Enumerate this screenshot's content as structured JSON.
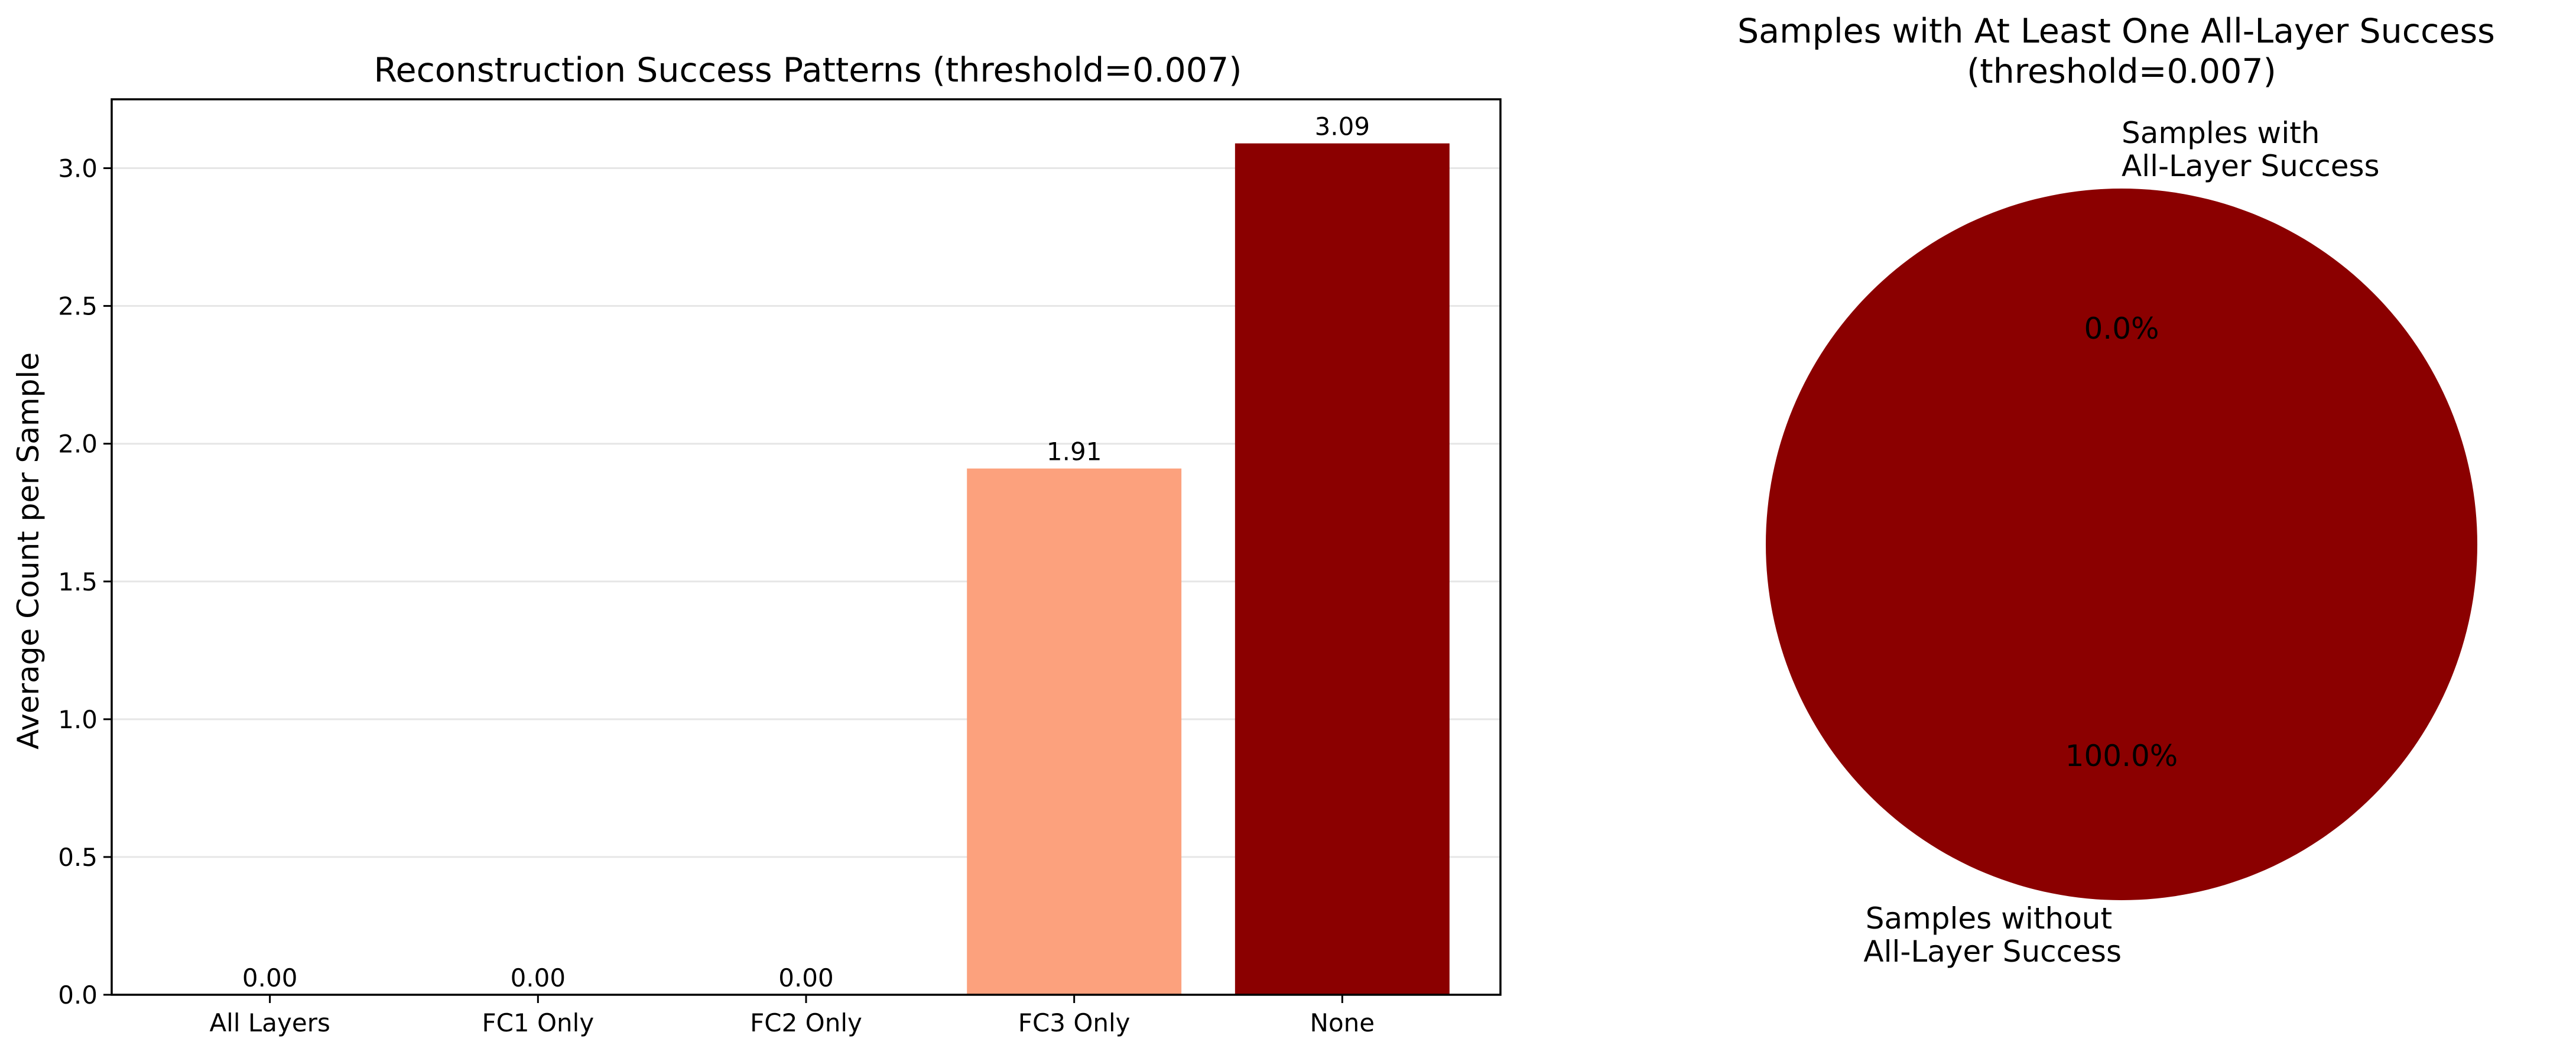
{
  "chart_data": [
    {
      "type": "bar",
      "title": "Reconstruction Success Patterns (threshold=0.007)",
      "xlabel": "",
      "ylabel": "Average Count per Sample",
      "categories": [
        "All Layers",
        "FC1 Only",
        "FC2 Only",
        "FC3 Only",
        "None"
      ],
      "values": [
        0.0,
        0.0,
        0.0,
        1.91,
        3.09
      ],
      "value_labels": [
        "0.00",
        "0.00",
        "0.00",
        "1.91",
        "3.09"
      ],
      "colors": [
        "#fee5d9",
        "#fcbba1",
        "#fc9272",
        "#fca17d",
        "#8b0000"
      ],
      "ylim": [
        0,
        3.25
      ],
      "yticks": [
        0.0,
        0.5,
        1.0,
        1.5,
        2.0,
        2.5,
        3.0
      ],
      "ytick_labels": [
        "0.0",
        "0.5",
        "1.0",
        "1.5",
        "2.0",
        "2.5",
        "3.0"
      ],
      "grid": "y"
    },
    {
      "type": "pie",
      "title_lines": [
        "Samples with At Least One All-Layer Success",
        "(threshold=0.007)"
      ],
      "slices": [
        {
          "label_lines": [
            "Samples with",
            "All-Layer Success"
          ],
          "value": 0.0,
          "pct": "0.0%",
          "color": "#ff6b6b"
        },
        {
          "label_lines": [
            "Samples without",
            "All-Layer Success"
          ],
          "value": 100.0,
          "pct": "100.0%",
          "color": "#8b0000"
        }
      ]
    }
  ]
}
